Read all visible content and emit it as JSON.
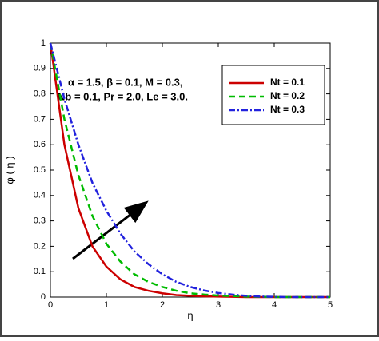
{
  "chart_data": {
    "type": "line",
    "xlabel": "η",
    "ylabel": "φ ( η )",
    "annotations": [
      "α = 1.5, β = 0.1,  M = 0.3,",
      "Nb = 0.1, Pr = 2.0, Le = 3.0."
    ],
    "x": [
      0,
      0.25,
      0.5,
      0.75,
      1,
      1.25,
      1.5,
      1.75,
      2,
      2.25,
      2.5,
      2.75,
      3,
      3.25,
      3.5,
      3.75,
      4,
      4.25,
      4.5,
      4.75,
      5
    ],
    "series": [
      {
        "name": "Nt = 0.1",
        "color": "#cc0000",
        "dash": "none",
        "values": [
          1,
          0.6,
          0.35,
          0.2,
          0.12,
          0.07,
          0.04,
          0.025,
          0.015,
          0.008,
          0.005,
          0.003,
          0.002,
          0.001,
          0,
          0,
          0,
          0,
          0,
          0,
          0
        ]
      },
      {
        "name": "Nt = 0.2",
        "color": "#00bb00",
        "dash": "8 5",
        "values": [
          1,
          0.7,
          0.48,
          0.32,
          0.21,
          0.14,
          0.09,
          0.06,
          0.04,
          0.025,
          0.015,
          0.01,
          0.006,
          0.004,
          0.002,
          0.001,
          0,
          0,
          0,
          0,
          0
        ]
      },
      {
        "name": "Nt = 0.3",
        "color": "#2222dd",
        "dash": "8 3 2 3",
        "values": [
          1,
          0.78,
          0.6,
          0.45,
          0.34,
          0.25,
          0.18,
          0.13,
          0.09,
          0.06,
          0.04,
          0.026,
          0.016,
          0.01,
          0.005,
          0.002,
          0.001,
          0,
          0,
          0,
          0
        ]
      }
    ],
    "xlim": [
      0,
      5
    ],
    "xticks": [
      0,
      1,
      2,
      3,
      4,
      5
    ],
    "ylim": [
      0,
      1
    ],
    "yticks": [
      0,
      0.1,
      0.2,
      0.3,
      0.4,
      0.5,
      0.6,
      0.7,
      0.8,
      0.9,
      1
    ],
    "grid": false,
    "legend": "upper right"
  }
}
